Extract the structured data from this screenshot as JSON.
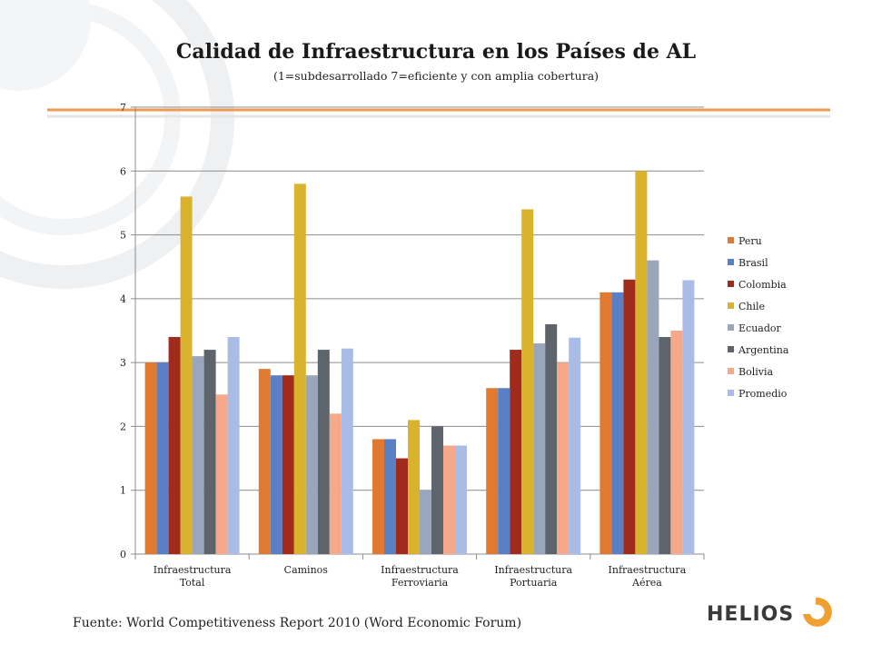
{
  "title": "Calidad de Infraestructura en los Países de AL",
  "subtitle": "(1=subdesarrollado  7=eficiente y con amplia cobertura)",
  "source": "Fuente: World Competitiveness Report 2010 (Word Economic Forum)",
  "logo": {
    "text": "HELIOS",
    "mark_color": "#f0a030"
  },
  "colors": {
    "accent_line": "#ec9a52"
  },
  "chart_data": {
    "type": "bar",
    "title": "Calidad de Infraestructura en los Países de AL",
    "subtitle": "(1=subdesarrollado  7=eficiente y con amplia cobertura)",
    "categories": [
      [
        "Infraestructura",
        "Total"
      ],
      [
        "Caminos"
      ],
      [
        "Infraestructura",
        "Ferroviaria"
      ],
      [
        "Infraestructura",
        "Portuaria"
      ],
      [
        "Infraestructura",
        "Aérea"
      ]
    ],
    "ylim": [
      0,
      7
    ],
    "yticks": [
      "0",
      "1",
      "2",
      "3",
      "4",
      "5",
      "6",
      "7"
    ],
    "grid": true,
    "legend_position": "right",
    "series": [
      {
        "name": "Peru",
        "color": "#e07a30",
        "values": [
          3.0,
          2.9,
          1.8,
          2.6,
          4.1
        ]
      },
      {
        "name": "Brasil",
        "color": "#5b7fc4",
        "values": [
          3.0,
          2.8,
          1.8,
          2.6,
          4.1
        ]
      },
      {
        "name": "Colombia",
        "color": "#a02a1c",
        "values": [
          3.4,
          2.8,
          1.5,
          3.2,
          4.3
        ]
      },
      {
        "name": "Chile",
        "color": "#d9b22e",
        "values": [
          5.6,
          5.8,
          2.1,
          5.4,
          6.0
        ]
      },
      {
        "name": "Ecuador",
        "color": "#9aa6bc",
        "values": [
          3.1,
          2.8,
          1.0,
          3.3,
          4.6
        ]
      },
      {
        "name": "Argentina",
        "color": "#5d646c",
        "values": [
          3.2,
          3.2,
          2.0,
          3.6,
          3.4
        ]
      },
      {
        "name": "Bolivia",
        "color": "#f6a98a",
        "values": [
          2.5,
          2.2,
          1.7,
          3.0,
          3.5
        ]
      },
      {
        "name": "Promedio",
        "color": "#a9bce6",
        "values": [
          3.4,
          3.22,
          1.7,
          3.39,
          4.29
        ]
      }
    ]
  }
}
